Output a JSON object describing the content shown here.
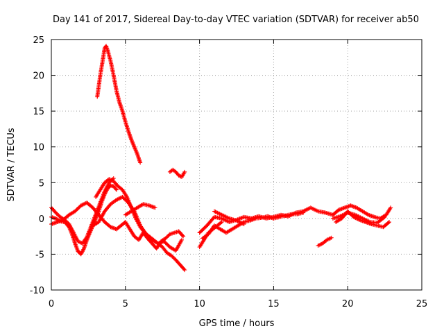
{
  "chart_data": {
    "type": "scatter",
    "title": "Day 141 of 2017, Sidereal Day-to-day VTEC variation (SDTVAR) for receiver ab50",
    "xlabel": "GPS time / hours",
    "ylabel": "SDTVAR / TECUs",
    "xlim": [
      0,
      25
    ],
    "ylim": [
      -10,
      25
    ],
    "xticks": [
      0,
      5,
      10,
      15,
      20,
      25
    ],
    "yticks": [
      -10,
      -5,
      0,
      5,
      10,
      15,
      20,
      25
    ],
    "xtick_labels": [
      "0",
      "5",
      "10",
      "15",
      "20",
      "25"
    ],
    "ytick_labels": [
      "-10",
      "-5",
      "0",
      "5",
      "10",
      "15",
      "20",
      "25"
    ],
    "grid": true,
    "marker": "+",
    "color": "#ff0000",
    "series": [
      {
        "name": "arc-lower-a",
        "x": [
          0.0,
          0.3,
          0.6,
          0.9,
          1.2,
          1.4,
          1.6,
          1.8,
          2.0,
          2.2,
          2.4,
          2.6,
          2.8,
          3.0,
          3.2,
          3.4,
          3.6,
          3.8,
          4.0,
          4.2,
          4.4
        ],
        "y": [
          0.2,
          0.0,
          -0.4,
          -0.5,
          -1.2,
          -2.2,
          -3.5,
          -4.6,
          -5.0,
          -4.2,
          -3.0,
          -2.0,
          -1.0,
          0.0,
          1.0,
          2.3,
          3.4,
          4.2,
          4.6,
          4.5,
          4.0
        ]
      },
      {
        "name": "arc-lower-b",
        "x": [
          0.0,
          0.3,
          0.6,
          0.9,
          1.2,
          1.5,
          1.8,
          2.1,
          2.4,
          2.7,
          3.0,
          3.3,
          3.6,
          3.9,
          4.2
        ],
        "y": [
          1.5,
          0.8,
          0.2,
          -0.2,
          -0.8,
          -2.0,
          -3.2,
          -3.5,
          -2.6,
          -1.0,
          0.6,
          2.2,
          3.8,
          5.0,
          5.6
        ]
      },
      {
        "name": "arc-lower-c",
        "x": [
          0.0,
          0.4,
          0.8,
          1.2,
          1.6,
          2.0,
          2.4,
          2.8,
          3.2,
          3.6,
          4.0,
          4.4
        ],
        "y": [
          -0.8,
          -0.5,
          -0.2,
          0.5,
          1.0,
          1.8,
          2.2,
          1.5,
          0.5,
          -0.5,
          -1.2,
          -1.5
        ]
      },
      {
        "name": "arc-mid-a",
        "x": [
          3.0,
          3.3,
          3.6,
          3.9,
          4.2,
          4.5,
          4.8,
          5.1,
          5.4,
          5.7,
          6.0,
          6.3,
          6.6,
          6.9,
          7.2,
          7.5,
          7.8,
          8.1,
          8.4,
          8.7,
          9.0
        ],
        "y": [
          3.0,
          4.0,
          5.0,
          5.5,
          5.2,
          4.5,
          4.0,
          3.0,
          1.5,
          0.0,
          -1.2,
          -2.0,
          -2.5,
          -3.0,
          -3.5,
          -4.0,
          -4.8,
          -5.2,
          -5.8,
          -6.5,
          -7.2
        ]
      },
      {
        "name": "arc-mid-b",
        "x": [
          2.8,
          3.2,
          3.6,
          4.0,
          4.4,
          4.8,
          5.2,
          5.6,
          6.0,
          6.4,
          6.8,
          7.2,
          7.6,
          8.0,
          8.4,
          8.8
        ],
        "y": [
          -1.0,
          -0.5,
          1.0,
          2.0,
          2.6,
          3.0,
          2.2,
          1.0,
          -1.0,
          -2.2,
          -3.0,
          -3.5,
          -3.2,
          -4.0,
          -4.5,
          -3.0
        ]
      },
      {
        "name": "arc-mid-c",
        "x": [
          4.4,
          4.7,
          5.0,
          5.3,
          5.6,
          5.9,
          6.2,
          6.5,
          6.8,
          7.1,
          7.4,
          7.7,
          8.0,
          8.3,
          8.6,
          8.9
        ],
        "y": [
          -1.5,
          -1.0,
          -0.5,
          -1.5,
          -2.5,
          -3.0,
          -2.0,
          -2.8,
          -3.5,
          -4.2,
          -3.2,
          -2.8,
          -2.2,
          -2.0,
          -1.8,
          -2.5
        ]
      },
      {
        "name": "arc-mid-d",
        "x": [
          5.0,
          5.4,
          5.8,
          6.2,
          6.6,
          7.0
        ],
        "y": [
          0.5,
          1.0,
          1.5,
          2.0,
          1.8,
          1.5
        ]
      },
      {
        "name": "arc-high",
        "x": [
          3.1,
          3.3,
          3.5,
          3.6,
          3.7,
          3.8,
          4.0,
          4.2,
          4.4,
          4.6,
          4.8,
          5.0,
          5.2,
          5.4,
          5.6,
          5.8,
          6.0
        ],
        "y": [
          17.0,
          20.0,
          22.5,
          23.8,
          24.1,
          23.5,
          22.0,
          20.0,
          17.8,
          16.2,
          15.0,
          13.5,
          12.2,
          11.0,
          10.0,
          9.0,
          7.8
        ]
      },
      {
        "name": "arc-8h",
        "x": [
          8.0,
          8.2,
          8.4,
          8.6,
          8.8,
          9.0
        ],
        "y": [
          6.5,
          6.8,
          6.5,
          6.0,
          5.8,
          6.5
        ]
      },
      {
        "name": "arc-day-a",
        "x": [
          10.0,
          10.5,
          11.0,
          11.5,
          12.0,
          12.5,
          13.0,
          13.5,
          14.0,
          14.5,
          15.0,
          15.5,
          16.0,
          16.5,
          17.0,
          17.5,
          18.0,
          18.5,
          19.0
        ],
        "y": [
          -2.0,
          -1.0,
          0.2,
          0.0,
          -0.5,
          -0.2,
          0.2,
          0.0,
          0.3,
          0.0,
          0.2,
          0.5,
          0.3,
          0.8,
          1.0,
          1.5,
          1.0,
          0.8,
          0.5
        ]
      },
      {
        "name": "arc-day-b",
        "x": [
          10.2,
          10.6,
          11.0,
          11.4,
          11.8,
          12.2,
          12.6,
          13.0,
          13.4,
          13.8,
          14.2,
          14.6,
          15.0,
          15.4,
          15.8,
          16.2,
          16.6,
          17.0
        ],
        "y": [
          -2.8,
          -2.2,
          -1.0,
          -1.5,
          -2.0,
          -1.5,
          -1.0,
          -0.5,
          -0.3,
          0.0,
          0.1,
          0.3,
          0.0,
          0.2,
          0.4,
          0.6,
          0.6,
          0.8
        ]
      },
      {
        "name": "arc-day-c",
        "x": [
          10.0,
          10.3,
          10.6,
          10.9,
          11.2,
          11.5
        ],
        "y": [
          -4.0,
          -3.0,
          -2.0,
          -1.5,
          -1.0,
          -0.5
        ]
      },
      {
        "name": "arc-day-d",
        "x": [
          11.0,
          11.5,
          12.0,
          12.5,
          13.0
        ],
        "y": [
          1.0,
          0.5,
          0.0,
          -0.3,
          -0.8
        ]
      },
      {
        "name": "arc-18h",
        "x": [
          18.0,
          18.3,
          18.6,
          18.9
        ],
        "y": [
          -3.8,
          -3.5,
          -3.0,
          -2.7
        ]
      },
      {
        "name": "arc-late-a",
        "x": [
          19.0,
          19.4,
          19.8,
          20.2,
          20.6,
          21.0,
          21.4,
          21.8,
          22.2,
          22.6,
          22.9
        ],
        "y": [
          0.5,
          1.2,
          1.5,
          1.8,
          1.5,
          1.0,
          0.5,
          0.2,
          0.0,
          0.5,
          1.5
        ]
      },
      {
        "name": "arc-late-b",
        "x": [
          19.2,
          19.6,
          20.0,
          20.4,
          20.8,
          21.2,
          21.6,
          22.0,
          22.4,
          22.8
        ],
        "y": [
          -0.5,
          0.0,
          1.0,
          0.2,
          -0.2,
          -0.5,
          -0.8,
          -1.0,
          -1.2,
          -0.5
        ]
      },
      {
        "name": "arc-late-c",
        "x": [
          19.0,
          19.5,
          20.0,
          20.5,
          21.0,
          21.5,
          22.0,
          22.5
        ],
        "y": [
          0.0,
          0.3,
          0.8,
          0.5,
          0.0,
          -0.5,
          -0.6,
          0.2
        ]
      }
    ]
  }
}
